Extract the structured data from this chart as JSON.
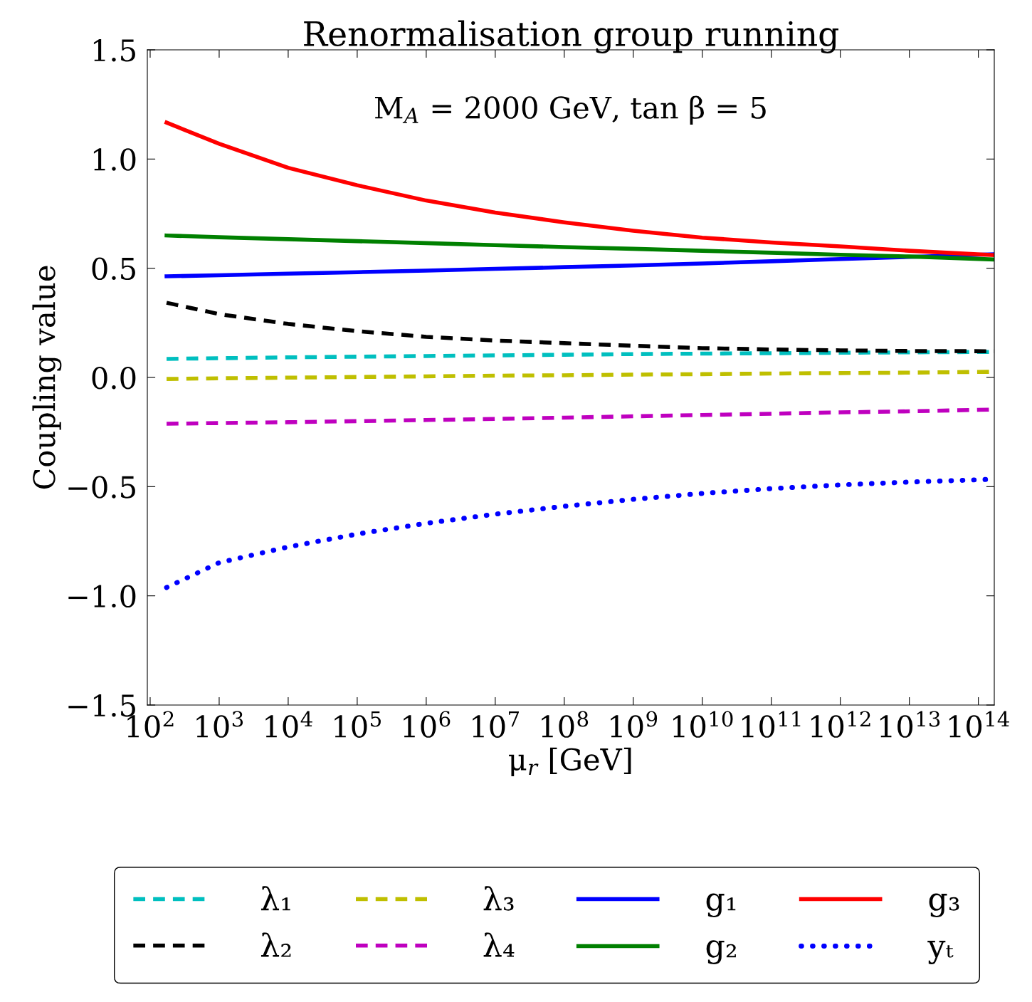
{
  "chart_data": {
    "type": "line",
    "title": "Renormalisation group running",
    "xlabel": "μ$_{r}$ [GeV]",
    "ylabel": "Coupling value",
    "annotations": [
      "M$_{A}$ = 2000 GeV, tan β = 5"
    ],
    "log": "x",
    "xlim": [
      91,
      170000000000000.0
    ],
    "xticks": [
      {
        "value": 100,
        "label": "10$^{2}$"
      },
      {
        "value": 1000.0,
        "label": "10$^{3}$"
      },
      {
        "value": 10000.0,
        "label": "10$^{4}$"
      },
      {
        "value": 100000.0,
        "label": "10$^{5}$"
      },
      {
        "value": 1000000.0,
        "label": "10$^{6}$"
      },
      {
        "value": 10000000.0,
        "label": "10$^{7}$"
      },
      {
        "value": 100000000.0,
        "label": "10$^{8}$"
      },
      {
        "value": 1000000000.0,
        "label": "10$^{9}$"
      },
      {
        "value": 10000000000.0,
        "label": "10$^{10}$"
      },
      {
        "value": 100000000000.0,
        "label": "10$^{11}$"
      },
      {
        "value": 1000000000000.0,
        "label": "10$^{12}$"
      },
      {
        "value": 10000000000000.0,
        "label": "10$^{13}$"
      },
      {
        "value": 100000000000000.0,
        "label": "10$^{14}$"
      }
    ],
    "ylim": [
      -1.5,
      1.5
    ],
    "yticks": [
      -1.5,
      {
        "value": -1,
        "label": "−1.0"
      },
      -0.5,
      {
        "value": 0,
        "label": "0.0"
      },
      0.5,
      {
        "value": 1,
        "label": "1.0"
      },
      1.5
    ],
    "grid": false,
    "legend": "bottom",
    "x": [
      173,
      1000.0,
      10000.0,
      100000.0,
      1000000.0,
      10000000.0,
      100000000.0,
      1000000000.0,
      10000000000.0,
      100000000000.0,
      1000000000000.0,
      10000000000000.0,
      170000000000000.0
    ],
    "series": [
      {
        "name": "λ₁",
        "color": "#00bfbf",
        "line_style": "dashed",
        "values": [
          0.085,
          0.088,
          0.092,
          0.095,
          0.098,
          0.101,
          0.104,
          0.107,
          0.109,
          0.111,
          0.113,
          0.115,
          0.117
        ]
      },
      {
        "name": "λ₂",
        "color": "#000000",
        "line_style": "dashed",
        "values": [
          0.342,
          0.29,
          0.245,
          0.212,
          0.186,
          0.169,
          0.157,
          0.145,
          0.134,
          0.128,
          0.124,
          0.121,
          0.12
        ]
      },
      {
        "name": "λ₃",
        "color": "#bfbf00",
        "line_style": "dashed",
        "values": [
          -0.007,
          -0.004,
          -0.001,
          0.002,
          0.005,
          0.008,
          0.01,
          0.013,
          0.015,
          0.018,
          0.02,
          0.022,
          0.026
        ]
      },
      {
        "name": "λ₄",
        "color": "#bf00bf",
        "line_style": "dashed",
        "values": [
          -0.212,
          -0.209,
          -0.205,
          -0.2,
          -0.195,
          -0.19,
          -0.184,
          -0.178,
          -0.172,
          -0.166,
          -0.16,
          -0.155,
          -0.147
        ]
      },
      {
        "name": "g₁",
        "color": "#0000ff",
        "line_style": "solid",
        "values": [
          0.463,
          0.468,
          0.475,
          0.482,
          0.489,
          0.497,
          0.505,
          0.513,
          0.522,
          0.532,
          0.542,
          0.552,
          0.564
        ]
      },
      {
        "name": "g₂",
        "color": "#008000",
        "line_style": "solid",
        "values": [
          0.65,
          0.642,
          0.633,
          0.624,
          0.615,
          0.606,
          0.597,
          0.589,
          0.58,
          0.571,
          0.562,
          0.554,
          0.54
        ]
      },
      {
        "name": "g₃",
        "color": "#ff0000",
        "line_style": "solid",
        "values": [
          1.167,
          1.07,
          0.96,
          0.88,
          0.81,
          0.755,
          0.71,
          0.672,
          0.64,
          0.618,
          0.6,
          0.58,
          0.56
        ]
      },
      {
        "name": "yₜ",
        "color": "#0000ff",
        "line_style": "dotted",
        "values": [
          -0.962,
          -0.848,
          -0.776,
          -0.717,
          -0.668,
          -0.626,
          -0.59,
          -0.558,
          -0.531,
          -0.509,
          -0.492,
          -0.479,
          -0.466
        ]
      }
    ]
  }
}
